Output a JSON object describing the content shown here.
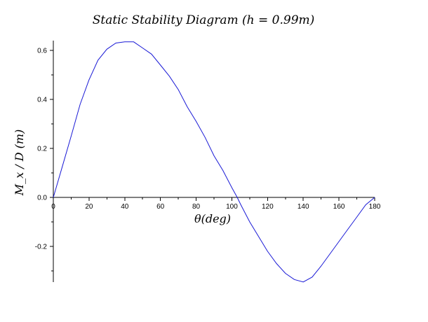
{
  "chart_data": {
    "type": "line",
    "title": "Static Stability Diagram (h = 0.99m)",
    "xlabel": "θ(deg)",
    "ylabel": "M_x / D (m)",
    "xlim": [
      0,
      180
    ],
    "ylim": [
      -0.34,
      0.64
    ],
    "x_ticks": [
      0,
      20,
      40,
      60,
      80,
      100,
      120,
      140,
      160,
      180
    ],
    "x_tick_labels": [
      "0",
      "20",
      "40",
      "60",
      "80",
      "100",
      "120",
      "140",
      "160",
      "180"
    ],
    "y_ticks": [
      -0.2,
      0.0,
      0.2,
      0.4,
      0.6
    ],
    "y_tick_labels": [
      "-0.2",
      "0.0",
      "0.2",
      "0.4",
      "0.6"
    ],
    "grid": false,
    "series_color": "#1a1ad6",
    "series": [
      {
        "x": [
          0,
          5,
          10,
          15,
          20,
          25,
          30,
          35,
          40,
          45,
          50,
          55,
          60,
          65,
          70,
          75,
          80,
          85,
          90,
          95,
          100,
          103,
          105,
          110,
          115,
          120,
          125,
          130,
          135,
          140,
          145,
          150,
          155,
          160,
          165,
          170,
          175,
          180
        ],
        "values": [
          0.0,
          0.125,
          0.25,
          0.38,
          0.48,
          0.56,
          0.605,
          0.63,
          0.635,
          0.635,
          0.61,
          0.585,
          0.54,
          0.495,
          0.44,
          0.37,
          0.31,
          0.245,
          0.17,
          0.11,
          0.04,
          0.0,
          -0.03,
          -0.1,
          -0.16,
          -0.22,
          -0.27,
          -0.31,
          -0.335,
          -0.345,
          -0.325,
          -0.28,
          -0.23,
          -0.18,
          -0.13,
          -0.08,
          -0.03,
          0.0
        ]
      }
    ]
  }
}
